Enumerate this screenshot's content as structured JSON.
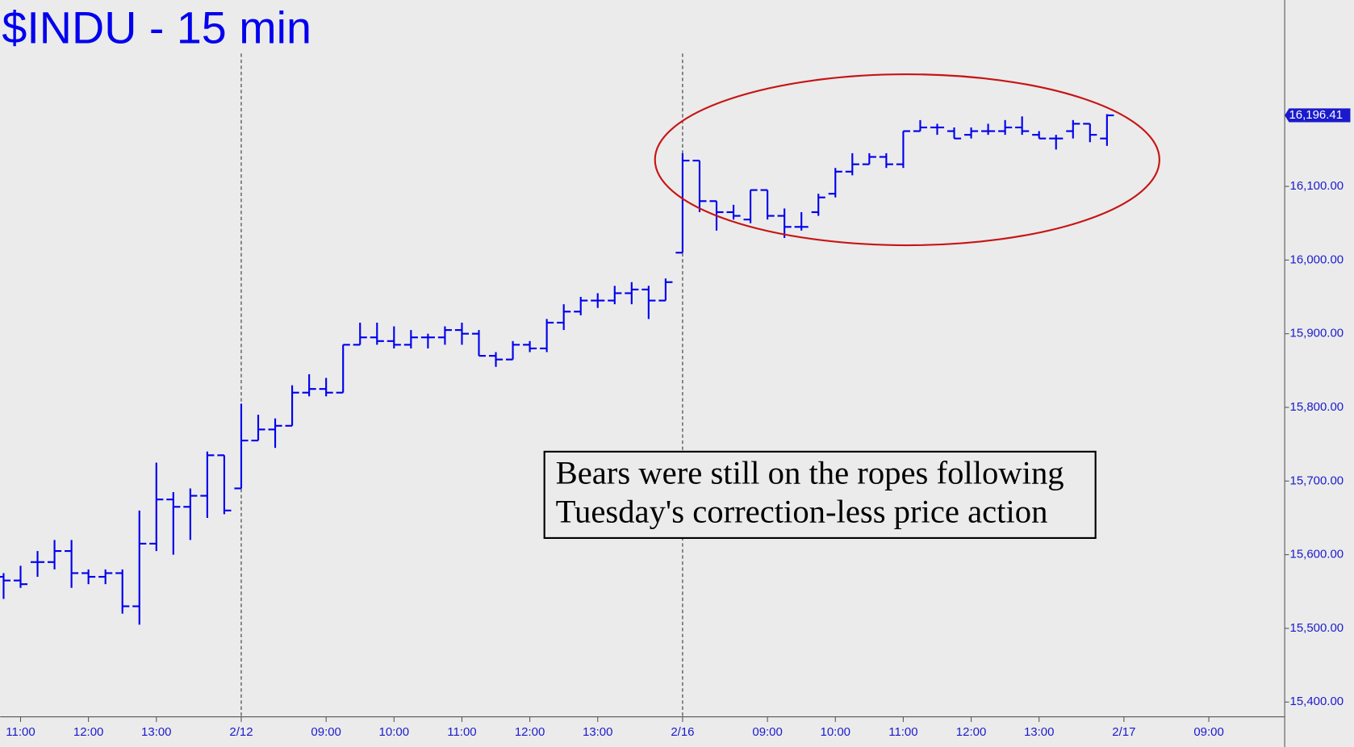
{
  "chart_data": {
    "type": "ohlc",
    "title": "$INDU - 15 min",
    "color": "#0000ee",
    "x": [
      0,
      1,
      2,
      3,
      4,
      5,
      6,
      7,
      8,
      9,
      10,
      11,
      12,
      13,
      14,
      15,
      16,
      17,
      18,
      19,
      20,
      21,
      22,
      23,
      24,
      25,
      26,
      27,
      28,
      29,
      30,
      31,
      32,
      33,
      34,
      35,
      36,
      37,
      38,
      39,
      40,
      41,
      42,
      43,
      44,
      45,
      46,
      47,
      48,
      49,
      50,
      51,
      52,
      53,
      54,
      55,
      56,
      57,
      58,
      59,
      60,
      61,
      62,
      63,
      64,
      65
    ],
    "open": [
      15570,
      15565,
      15590,
      15590,
      15605,
      15575,
      15570,
      15575,
      15530,
      15615,
      15675,
      15665,
      15680,
      15735,
      15690,
      15755,
      15770,
      15775,
      15820,
      15825,
      15820,
      15885,
      15895,
      15890,
      15885,
      15895,
      15895,
      15905,
      15900,
      15870,
      15865,
      15885,
      15880,
      15915,
      15930,
      15945,
      15945,
      15955,
      15960,
      15945,
      16010,
      16135,
      16080,
      16065,
      16055,
      16095,
      16060,
      16045,
      16065,
      16090,
      16120,
      16130,
      16140,
      16130,
      16175,
      16180,
      16175,
      16170,
      16175,
      16175,
      16180,
      16170,
      16165,
      16175,
      16185,
      16165
    ],
    "high": [
      15575,
      15585,
      15605,
      15620,
      15620,
      15580,
      15580,
      15580,
      15660,
      15725,
      15685,
      15690,
      15740,
      15735,
      15805,
      15790,
      15785,
      15830,
      15845,
      15840,
      15885,
      15915,
      15915,
      15910,
      15905,
      15900,
      15910,
      15915,
      15905,
      15875,
      15890,
      15890,
      15920,
      15940,
      15950,
      15955,
      15965,
      15970,
      15965,
      15975,
      16145,
      16135,
      16080,
      16075,
      16095,
      16095,
      16070,
      16065,
      16090,
      16125,
      16145,
      16145,
      16145,
      16175,
      16190,
      16185,
      16180,
      16180,
      16185,
      16190,
      16195,
      16175,
      16170,
      16190,
      16185,
      16198
    ],
    "low": [
      15540,
      15555,
      15570,
      15580,
      15555,
      15560,
      15560,
      15520,
      15505,
      15605,
      15600,
      15620,
      15650,
      15655,
      15690,
      15755,
      15745,
      15775,
      15815,
      15815,
      15820,
      15885,
      15885,
      15880,
      15880,
      15880,
      15885,
      15885,
      15870,
      15855,
      15865,
      15875,
      15875,
      15905,
      15925,
      15935,
      15940,
      15940,
      15920,
      15945,
      16010,
      16065,
      16040,
      16055,
      16050,
      16055,
      16030,
      16040,
      16060,
      16085,
      16115,
      16130,
      16125,
      16125,
      16175,
      16170,
      16165,
      16165,
      16170,
      16170,
      16170,
      16165,
      16150,
      16165,
      16160,
      16155
    ],
    "close": [
      15565,
      15560,
      15590,
      15605,
      15575,
      15570,
      15575,
      15530,
      15615,
      15675,
      15665,
      15680,
      15735,
      15660,
      15755,
      15770,
      15775,
      15820,
      15825,
      15820,
      15885,
      15895,
      15890,
      15885,
      15895,
      15895,
      15905,
      15900,
      15870,
      15865,
      15885,
      15880,
      15915,
      15930,
      15945,
      15945,
      15955,
      15960,
      15945,
      15970,
      16135,
      16080,
      16065,
      16060,
      16095,
      16060,
      16045,
      16045,
      16085,
      16120,
      16130,
      16140,
      16130,
      16175,
      16180,
      16180,
      16165,
      16175,
      16175,
      16180,
      16175,
      16165,
      16165,
      16185,
      16170,
      16196.41
    ],
    "xlim": [
      -0.2,
      75.47
    ],
    "xticks": [
      {
        "value": 1,
        "label": "11:00"
      },
      {
        "value": 5,
        "label": "12:00"
      },
      {
        "value": 9,
        "label": "13:00"
      },
      {
        "value": 14,
        "label": "2/12"
      },
      {
        "value": 19,
        "label": "09:00"
      },
      {
        "value": 23,
        "label": "10:00"
      },
      {
        "value": 27,
        "label": "11:00"
      },
      {
        "value": 31,
        "label": "12:00"
      },
      {
        "value": 35,
        "label": "13:00"
      },
      {
        "value": 40,
        "label": "2/16"
      },
      {
        "value": 45,
        "label": "09:00"
      },
      {
        "value": 49,
        "label": "10:00"
      },
      {
        "value": 53,
        "label": "11:00"
      },
      {
        "value": 57,
        "label": "12:00"
      },
      {
        "value": 61,
        "label": "13:00"
      },
      {
        "value": 66,
        "label": "2/17"
      },
      {
        "value": 71,
        "label": "09:00"
      }
    ],
    "vlines": [
      14,
      40
    ],
    "ylim": [
      15380,
      16353
    ],
    "yticks": [
      {
        "value": 15400,
        "label": "15,400.00"
      },
      {
        "value": 15500,
        "label": "15,500.00"
      },
      {
        "value": 15600,
        "label": "15,600.00"
      },
      {
        "value": 15700,
        "label": "15,700.00"
      },
      {
        "value": 15800,
        "label": "15,800.00"
      },
      {
        "value": 15900,
        "label": "15,900.00"
      },
      {
        "value": 16000,
        "label": "16,000.00"
      },
      {
        "value": 16100,
        "label": "16,100.00"
      }
    ],
    "last_price": {
      "value": 16196.41,
      "label": "16,196.41"
    },
    "annotation": [
      "Bears were still on the ropes following",
      "Tuesday's correction-less price action"
    ]
  }
}
